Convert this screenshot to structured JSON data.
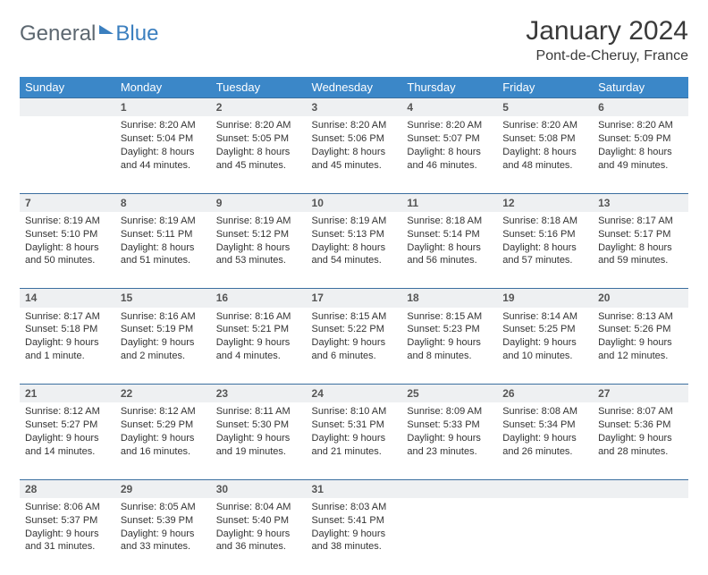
{
  "brand": {
    "part1": "General",
    "part2": "Blue"
  },
  "title": "January 2024",
  "location": "Pont-de-Cheruy, France",
  "colors": {
    "header_bg": "#3b87c8",
    "header_text": "#ffffff",
    "divider": "#3b6fa0",
    "daynum_bg": "#eef0f2",
    "text": "#333333",
    "brand_gray": "#5c6770",
    "brand_blue": "#3b7fbf"
  },
  "weekdays": [
    "Sunday",
    "Monday",
    "Tuesday",
    "Wednesday",
    "Thursday",
    "Friday",
    "Saturday"
  ],
  "start_offset": 1,
  "days": [
    {
      "n": 1,
      "sr": "8:20 AM",
      "ss": "5:04 PM",
      "dl": "8 hours and 44 minutes."
    },
    {
      "n": 2,
      "sr": "8:20 AM",
      "ss": "5:05 PM",
      "dl": "8 hours and 45 minutes."
    },
    {
      "n": 3,
      "sr": "8:20 AM",
      "ss": "5:06 PM",
      "dl": "8 hours and 45 minutes."
    },
    {
      "n": 4,
      "sr": "8:20 AM",
      "ss": "5:07 PM",
      "dl": "8 hours and 46 minutes."
    },
    {
      "n": 5,
      "sr": "8:20 AM",
      "ss": "5:08 PM",
      "dl": "8 hours and 48 minutes."
    },
    {
      "n": 6,
      "sr": "8:20 AM",
      "ss": "5:09 PM",
      "dl": "8 hours and 49 minutes."
    },
    {
      "n": 7,
      "sr": "8:19 AM",
      "ss": "5:10 PM",
      "dl": "8 hours and 50 minutes."
    },
    {
      "n": 8,
      "sr": "8:19 AM",
      "ss": "5:11 PM",
      "dl": "8 hours and 51 minutes."
    },
    {
      "n": 9,
      "sr": "8:19 AM",
      "ss": "5:12 PM",
      "dl": "8 hours and 53 minutes."
    },
    {
      "n": 10,
      "sr": "8:19 AM",
      "ss": "5:13 PM",
      "dl": "8 hours and 54 minutes."
    },
    {
      "n": 11,
      "sr": "8:18 AM",
      "ss": "5:14 PM",
      "dl": "8 hours and 56 minutes."
    },
    {
      "n": 12,
      "sr": "8:18 AM",
      "ss": "5:16 PM",
      "dl": "8 hours and 57 minutes."
    },
    {
      "n": 13,
      "sr": "8:17 AM",
      "ss": "5:17 PM",
      "dl": "8 hours and 59 minutes."
    },
    {
      "n": 14,
      "sr": "8:17 AM",
      "ss": "5:18 PM",
      "dl": "9 hours and 1 minute."
    },
    {
      "n": 15,
      "sr": "8:16 AM",
      "ss": "5:19 PM",
      "dl": "9 hours and 2 minutes."
    },
    {
      "n": 16,
      "sr": "8:16 AM",
      "ss": "5:21 PM",
      "dl": "9 hours and 4 minutes."
    },
    {
      "n": 17,
      "sr": "8:15 AM",
      "ss": "5:22 PM",
      "dl": "9 hours and 6 minutes."
    },
    {
      "n": 18,
      "sr": "8:15 AM",
      "ss": "5:23 PM",
      "dl": "9 hours and 8 minutes."
    },
    {
      "n": 19,
      "sr": "8:14 AM",
      "ss": "5:25 PM",
      "dl": "9 hours and 10 minutes."
    },
    {
      "n": 20,
      "sr": "8:13 AM",
      "ss": "5:26 PM",
      "dl": "9 hours and 12 minutes."
    },
    {
      "n": 21,
      "sr": "8:12 AM",
      "ss": "5:27 PM",
      "dl": "9 hours and 14 minutes."
    },
    {
      "n": 22,
      "sr": "8:12 AM",
      "ss": "5:29 PM",
      "dl": "9 hours and 16 minutes."
    },
    {
      "n": 23,
      "sr": "8:11 AM",
      "ss": "5:30 PM",
      "dl": "9 hours and 19 minutes."
    },
    {
      "n": 24,
      "sr": "8:10 AM",
      "ss": "5:31 PM",
      "dl": "9 hours and 21 minutes."
    },
    {
      "n": 25,
      "sr": "8:09 AM",
      "ss": "5:33 PM",
      "dl": "9 hours and 23 minutes."
    },
    {
      "n": 26,
      "sr": "8:08 AM",
      "ss": "5:34 PM",
      "dl": "9 hours and 26 minutes."
    },
    {
      "n": 27,
      "sr": "8:07 AM",
      "ss": "5:36 PM",
      "dl": "9 hours and 28 minutes."
    },
    {
      "n": 28,
      "sr": "8:06 AM",
      "ss": "5:37 PM",
      "dl": "9 hours and 31 minutes."
    },
    {
      "n": 29,
      "sr": "8:05 AM",
      "ss": "5:39 PM",
      "dl": "9 hours and 33 minutes."
    },
    {
      "n": 30,
      "sr": "8:04 AM",
      "ss": "5:40 PM",
      "dl": "9 hours and 36 minutes."
    },
    {
      "n": 31,
      "sr": "8:03 AM",
      "ss": "5:41 PM",
      "dl": "9 hours and 38 minutes."
    }
  ],
  "labels": {
    "sunrise": "Sunrise:",
    "sunset": "Sunset:",
    "daylight": "Daylight:"
  }
}
